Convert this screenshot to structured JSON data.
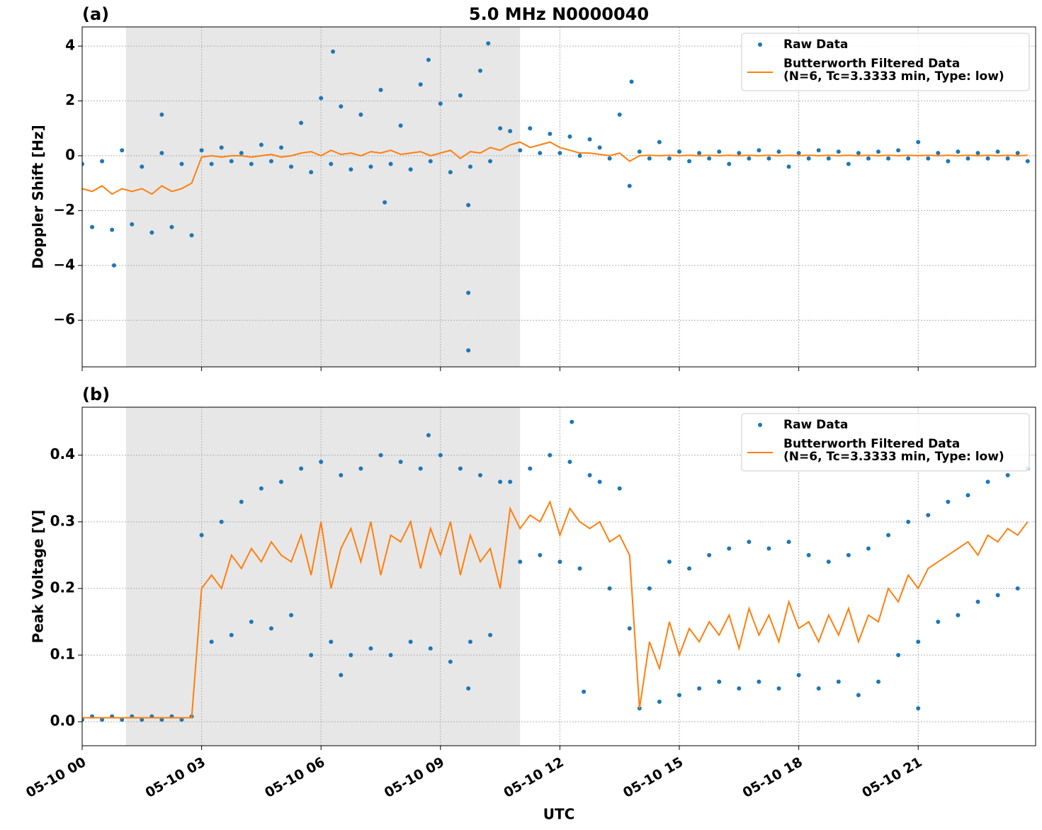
{
  "chart_data": [
    {
      "type": "line",
      "title": "5.0 MHz N0000040",
      "panel_label": "(a)",
      "y_label": "Doppler Shift [Hz]",
      "xlim": [
        0,
        23.95
      ],
      "ylim": [
        -7.7,
        4.7
      ],
      "grid": true,
      "legend": "upper right",
      "shaded_span": [
        1.1,
        11.0
      ],
      "shade_color": "#e7e7e7",
      "xticks": [
        0,
        3,
        6,
        9,
        12,
        15,
        18,
        21
      ],
      "yticks": [
        {
          "value": -6,
          "label": "−6"
        },
        {
          "value": -4,
          "label": "−4"
        },
        {
          "value": -2,
          "label": "−2"
        },
        0,
        2,
        4
      ],
      "series": [
        {
          "name": "Raw Data",
          "type": "scatter",
          "color": "#1f77b4",
          "x": [
            0,
            0.25,
            0.5,
            0.75,
            1,
            1.25,
            1.5,
            1.75,
            2,
            2.25,
            2.5,
            2.75,
            3,
            3.25,
            3.5,
            3.75,
            4,
            4.25,
            4.5,
            4.75,
            5,
            5.25,
            5.5,
            5.75,
            6,
            6.25,
            6.5,
            6.75,
            7,
            7.25,
            7.5,
            7.75,
            8,
            8.25,
            8.5,
            8.75,
            9,
            9.25,
            9.5,
            9.75,
            10,
            10.25,
            10.5,
            10.75,
            11,
            11.25,
            11.5,
            11.75,
            12,
            12.25,
            12.5,
            12.75,
            13,
            13.25,
            13.5,
            13.75,
            14,
            14.25,
            14.5,
            14.75,
            15,
            15.25,
            15.5,
            15.75,
            16,
            16.25,
            16.5,
            16.75,
            17,
            17.25,
            17.5,
            17.75,
            18,
            18.25,
            18.5,
            18.75,
            19,
            19.25,
            19.5,
            19.75,
            20,
            20.25,
            20.5,
            20.75,
            21,
            21.25,
            21.5,
            21.75,
            22,
            22.25,
            22.5,
            22.75,
            23,
            23.25,
            23.5,
            23.75,
            2.0,
            0.8,
            6.3,
            9.7,
            9.7,
            10.2,
            8.7,
            13.8,
            9.7,
            7.6
          ],
          "values": [
            -0.3,
            -2.6,
            -0.2,
            -2.7,
            0.2,
            -2.5,
            -0.4,
            -2.8,
            0.1,
            -2.6,
            -0.3,
            -2.9,
            0.2,
            -0.3,
            0.3,
            -0.2,
            0.1,
            -0.3,
            0.4,
            -0.2,
            0.3,
            -0.4,
            1.2,
            -0.6,
            2.1,
            -0.3,
            1.8,
            -0.5,
            1.5,
            -0.4,
            2.4,
            -0.3,
            1.1,
            -0.5,
            2.6,
            -0.2,
            1.9,
            -0.6,
            2.2,
            -0.4,
            3.1,
            -0.2,
            1.0,
            0.9,
            0.2,
            1.0,
            0.1,
            0.8,
            0.1,
            0.7,
            0.0,
            0.6,
            0.3,
            -0.1,
            1.5,
            -1.1,
            0.15,
            -0.1,
            0.5,
            -0.1,
            0.15,
            -0.2,
            0.1,
            -0.1,
            0.15,
            -0.3,
            0.1,
            -0.1,
            0.2,
            -0.1,
            0.15,
            -0.4,
            0.1,
            -0.1,
            0.2,
            -0.1,
            0.15,
            -0.3,
            0.1,
            -0.1,
            0.15,
            -0.1,
            0.2,
            -0.1,
            0.5,
            -0.1,
            0.1,
            -0.2,
            0.15,
            -0.1,
            0.1,
            -0.1,
            0.15,
            -0.1,
            0.1,
            -0.2,
            1.5,
            -4.0,
            3.8,
            -7.1,
            -5.0,
            4.1,
            3.5,
            2.7,
            -1.8,
            -1.7
          ]
        },
        {
          "name": "Butterworth Filtered Data\n(N=6, Tc=3.3333 min, Type: low)",
          "type": "line",
          "color": "#ff7f0e",
          "x": [
            0,
            0.25,
            0.5,
            0.75,
            1,
            1.25,
            1.5,
            1.75,
            2,
            2.25,
            2.5,
            2.75,
            3,
            3.25,
            3.5,
            3.75,
            4,
            4.25,
            4.5,
            4.75,
            5,
            5.25,
            5.5,
            5.75,
            6,
            6.25,
            6.5,
            6.75,
            7,
            7.25,
            7.5,
            7.75,
            8,
            8.25,
            8.5,
            8.75,
            9,
            9.25,
            9.5,
            9.75,
            10,
            10.25,
            10.5,
            10.75,
            11,
            11.25,
            11.5,
            11.75,
            12,
            12.25,
            12.5,
            12.75,
            13,
            13.25,
            13.5,
            13.75,
            14,
            14.25,
            14.5,
            14.75,
            15,
            15.25,
            15.5,
            15.75,
            16,
            16.25,
            16.5,
            16.75,
            17,
            17.25,
            17.5,
            17.75,
            18,
            18.25,
            18.5,
            18.75,
            19,
            19.25,
            19.5,
            19.75,
            20,
            20.25,
            20.5,
            20.75,
            21,
            21.25,
            21.5,
            21.75,
            22,
            22.25,
            22.5,
            22.75,
            23,
            23.25,
            23.5,
            23.75
          ],
          "values": [
            -1.2,
            -1.3,
            -1.1,
            -1.4,
            -1.2,
            -1.3,
            -1.2,
            -1.4,
            -1.1,
            -1.3,
            -1.2,
            -1.0,
            -0.05,
            0.0,
            -0.05,
            0.0,
            0.0,
            -0.05,
            0.0,
            0.05,
            -0.05,
            0.0,
            0.1,
            0.15,
            0.0,
            0.2,
            0.05,
            0.1,
            0.0,
            0.15,
            0.1,
            0.2,
            0.05,
            0.1,
            0.15,
            0.0,
            0.1,
            0.2,
            -0.1,
            0.15,
            0.1,
            0.3,
            0.2,
            0.4,
            0.5,
            0.3,
            0.4,
            0.5,
            0.3,
            0.2,
            0.1,
            0.1,
            0.05,
            0.0,
            0.1,
            -0.2,
            0.0,
            0.02,
            0.0,
            0.02,
            0.0,
            0.02,
            0.0,
            0.02,
            0.0,
            0.02,
            0.0,
            0.02,
            0.0,
            0.02,
            0.0,
            0.02,
            0.0,
            0.02,
            0.0,
            0.02,
            0.0,
            0.02,
            0.0,
            0.02,
            0.0,
            0.02,
            0.0,
            0.02,
            0.0,
            0.02,
            0.0,
            0.02,
            0.0,
            0.02,
            0.0,
            0.02,
            0.0,
            0.02,
            0.0,
            0.02
          ]
        }
      ]
    },
    {
      "type": "line",
      "panel_label": "(b)",
      "y_label": "Peak Voltage [V]",
      "x_label": "UTC",
      "xlim": [
        0,
        23.95
      ],
      "ylim": [
        -0.036,
        0.472
      ],
      "grid": true,
      "legend": "upper right",
      "shaded_span": [
        1.1,
        11.0
      ],
      "shade_color": "#e7e7e7",
      "xticks": [
        {
          "value": 0,
          "label": "05-10 00"
        },
        {
          "value": 3,
          "label": "05-10 03"
        },
        {
          "value": 6,
          "label": "05-10 06"
        },
        {
          "value": 9,
          "label": "05-10 09"
        },
        {
          "value": 12,
          "label": "05-10 12"
        },
        {
          "value": 15,
          "label": "05-10 15"
        },
        {
          "value": 18,
          "label": "05-10 18"
        },
        {
          "value": 21,
          "label": "05-10 21"
        }
      ],
      "yticks": [
        {
          "value": 0,
          "label": "0.0"
        },
        0.1,
        0.2,
        0.3,
        0.4
      ],
      "series": [
        {
          "name": "Raw Data",
          "type": "scatter",
          "color": "#1f77b4",
          "x": [
            0,
            0.25,
            0.5,
            0.75,
            1,
            1.25,
            1.5,
            1.75,
            2,
            2.25,
            2.5,
            2.75,
            3,
            3.25,
            3.5,
            3.75,
            4,
            4.25,
            4.5,
            4.75,
            5,
            5.25,
            5.5,
            5.75,
            6,
            6.25,
            6.5,
            6.75,
            7,
            7.25,
            7.5,
            7.75,
            8,
            8.25,
            8.5,
            8.75,
            9,
            9.25,
            9.5,
            9.75,
            10,
            10.25,
            10.5,
            10.75,
            11,
            11.25,
            11.5,
            11.75,
            12,
            12.25,
            12.5,
            12.75,
            13,
            13.25,
            13.5,
            13.75,
            14,
            14.25,
            14.5,
            14.75,
            15,
            15.25,
            15.5,
            15.75,
            16,
            16.25,
            16.5,
            16.75,
            17,
            17.25,
            17.5,
            17.75,
            18,
            18.25,
            18.5,
            18.75,
            19,
            19.25,
            19.5,
            19.75,
            20,
            20.25,
            20.5,
            20.75,
            21,
            21.25,
            21.5,
            21.75,
            22,
            22.25,
            22.5,
            22.75,
            23,
            23.25,
            23.5,
            23.75,
            8.7,
            12.3,
            9.7,
            12.6,
            6.5,
            21.0
          ],
          "values": [
            0.003,
            0.008,
            0.003,
            0.008,
            0.003,
            0.008,
            0.003,
            0.008,
            0.003,
            0.008,
            0.003,
            0.008,
            0.28,
            0.12,
            0.3,
            0.13,
            0.33,
            0.15,
            0.35,
            0.14,
            0.36,
            0.16,
            0.38,
            0.1,
            0.39,
            0.12,
            0.37,
            0.1,
            0.38,
            0.11,
            0.4,
            0.1,
            0.39,
            0.12,
            0.38,
            0.11,
            0.4,
            0.09,
            0.38,
            0.12,
            0.37,
            0.13,
            0.36,
            0.36,
            0.24,
            0.38,
            0.25,
            0.4,
            0.24,
            0.39,
            0.23,
            0.37,
            0.36,
            0.2,
            0.35,
            0.14,
            0.02,
            0.2,
            0.03,
            0.24,
            0.04,
            0.23,
            0.05,
            0.25,
            0.06,
            0.26,
            0.05,
            0.27,
            0.06,
            0.26,
            0.05,
            0.27,
            0.07,
            0.25,
            0.05,
            0.24,
            0.06,
            0.25,
            0.04,
            0.26,
            0.06,
            0.28,
            0.1,
            0.3,
            0.12,
            0.31,
            0.15,
            0.33,
            0.16,
            0.34,
            0.18,
            0.36,
            0.19,
            0.37,
            0.2,
            0.38,
            0.43,
            0.45,
            0.05,
            0.045,
            0.07,
            0.02
          ]
        },
        {
          "name": "Butterworth Filtered Data\n(N=6, Tc=3.3333 min, Type: low)",
          "type": "line",
          "color": "#ff7f0e",
          "x": [
            0,
            0.25,
            0.5,
            0.75,
            1,
            1.25,
            1.5,
            1.75,
            2,
            2.25,
            2.5,
            2.75,
            3,
            3.25,
            3.5,
            3.75,
            4,
            4.25,
            4.5,
            4.75,
            5,
            5.25,
            5.5,
            5.75,
            6,
            6.25,
            6.5,
            6.75,
            7,
            7.25,
            7.5,
            7.75,
            8,
            8.25,
            8.5,
            8.75,
            9,
            9.25,
            9.5,
            9.75,
            10,
            10.25,
            10.5,
            10.75,
            11,
            11.25,
            11.5,
            11.75,
            12,
            12.25,
            12.5,
            12.75,
            13,
            13.25,
            13.5,
            13.75,
            14,
            14.25,
            14.5,
            14.75,
            15,
            15.25,
            15.5,
            15.75,
            16,
            16.25,
            16.5,
            16.75,
            17,
            17.25,
            17.5,
            17.75,
            18,
            18.25,
            18.5,
            18.75,
            19,
            19.25,
            19.5,
            19.75,
            20,
            20.25,
            20.5,
            20.75,
            21,
            21.25,
            21.5,
            21.75,
            22,
            22.25,
            22.5,
            22.75,
            23,
            23.25,
            23.5,
            23.75
          ],
          "values": [
            0.006,
            0.006,
            0.006,
            0.006,
            0.006,
            0.006,
            0.006,
            0.006,
            0.006,
            0.006,
            0.006,
            0.006,
            0.2,
            0.22,
            0.2,
            0.25,
            0.23,
            0.26,
            0.24,
            0.27,
            0.25,
            0.24,
            0.28,
            0.22,
            0.3,
            0.2,
            0.26,
            0.29,
            0.24,
            0.3,
            0.22,
            0.28,
            0.27,
            0.3,
            0.23,
            0.29,
            0.25,
            0.3,
            0.22,
            0.28,
            0.24,
            0.26,
            0.2,
            0.32,
            0.29,
            0.31,
            0.3,
            0.33,
            0.28,
            0.32,
            0.3,
            0.29,
            0.3,
            0.27,
            0.28,
            0.25,
            0.02,
            0.12,
            0.08,
            0.15,
            0.1,
            0.14,
            0.12,
            0.15,
            0.13,
            0.16,
            0.11,
            0.17,
            0.13,
            0.16,
            0.12,
            0.18,
            0.14,
            0.15,
            0.12,
            0.16,
            0.13,
            0.17,
            0.12,
            0.16,
            0.15,
            0.2,
            0.18,
            0.22,
            0.2,
            0.23,
            0.24,
            0.25,
            0.26,
            0.27,
            0.25,
            0.28,
            0.27,
            0.29,
            0.28,
            0.3
          ]
        }
      ]
    }
  ]
}
